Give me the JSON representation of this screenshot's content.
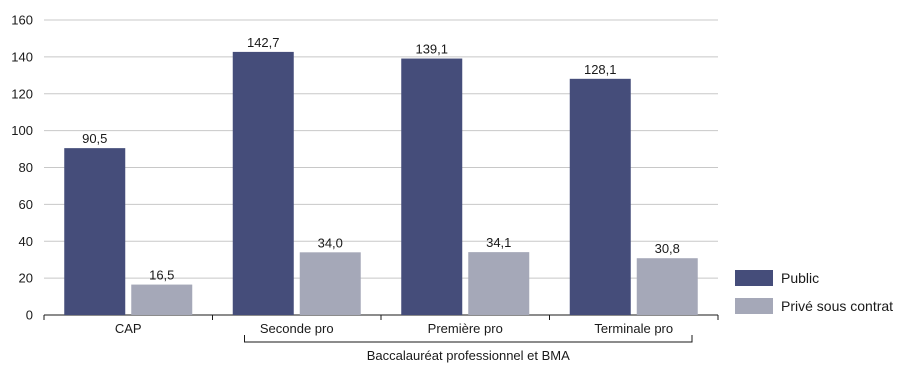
{
  "chart_data": {
    "type": "bar",
    "categories": [
      "CAP",
      "Seconde pro",
      "Première pro",
      "Terminale pro"
    ],
    "series": [
      {
        "name": "Public",
        "values": [
          90.5,
          142.7,
          139.1,
          128.1
        ],
        "labels": [
          "90,5",
          "142,7",
          "139,1",
          "128,1"
        ],
        "color": "#454d7a"
      },
      {
        "name": "Privé sous contrat",
        "values": [
          16.5,
          34.0,
          34.1,
          30.8
        ],
        "labels": [
          "16,5",
          "34,0",
          "34,1",
          "30,8"
        ],
        "color": "#a5a8b8"
      }
    ],
    "ylim": [
      0,
      160
    ],
    "yticks": [
      0,
      20,
      40,
      60,
      80,
      100,
      120,
      140,
      160
    ],
    "group_label": "Baccalauréat professionnel et BMA",
    "grid": true,
    "legend_position": "bottom-right"
  }
}
